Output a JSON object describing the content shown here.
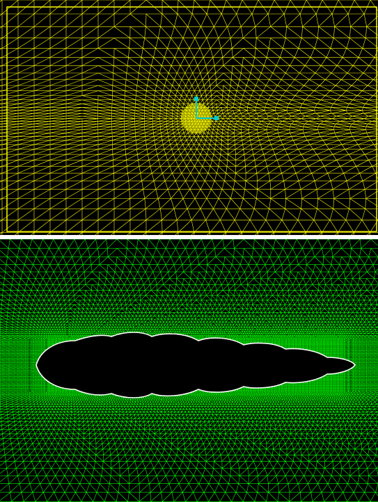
{
  "panels": [
    {
      "id": "top",
      "content": "mesh",
      "mesh_color": "#ffff00",
      "background": "#000000",
      "refinement": "radial-center",
      "axis_triad_colors": {
        "axes": "#00cccc"
      }
    },
    {
      "id": "bottom",
      "content": "mesh",
      "mesh_color": "#00ff00",
      "background": "#000000",
      "refinement": "around-body",
      "body_color": "#000000",
      "body_outline": "#ffffff"
    }
  ]
}
